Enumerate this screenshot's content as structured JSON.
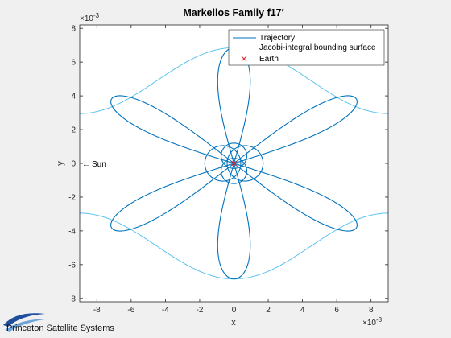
{
  "chart_data": {
    "type": "line",
    "title": "Markellos Family f17",
    "title_prime": "′",
    "xlabel": "x",
    "ylabel": "y",
    "x_exponent": "×10",
    "x_exponent_power": "-3",
    "y_exponent": "×10",
    "y_exponent_power": "-3",
    "xlim": [
      -9,
      9
    ],
    "ylim": [
      -8.2,
      8.2
    ],
    "xticks": [
      -8,
      -6,
      -4,
      -2,
      0,
      2,
      4,
      6,
      8
    ],
    "yticks": [
      -8,
      -6,
      -4,
      -2,
      0,
      2,
      4,
      6,
      8
    ],
    "grid": false,
    "legend_placement": "top-right",
    "series": [
      {
        "name": "Trajectory",
        "color": "#0072bd",
        "style": "line"
      },
      {
        "name": "Jacobi-integral bounding surface",
        "color": "#4dbeee",
        "style": "line"
      },
      {
        "name": "Earth",
        "color": "#d62728",
        "style": "x-marker",
        "x": [
          0
        ],
        "y": [
          0
        ]
      }
    ],
    "annotations": [
      {
        "text": "Sun",
        "x": -9,
        "y": 0,
        "arrow": "←"
      }
    ]
  },
  "branding": {
    "logo_text": "Princeton Satellite Systems"
  }
}
